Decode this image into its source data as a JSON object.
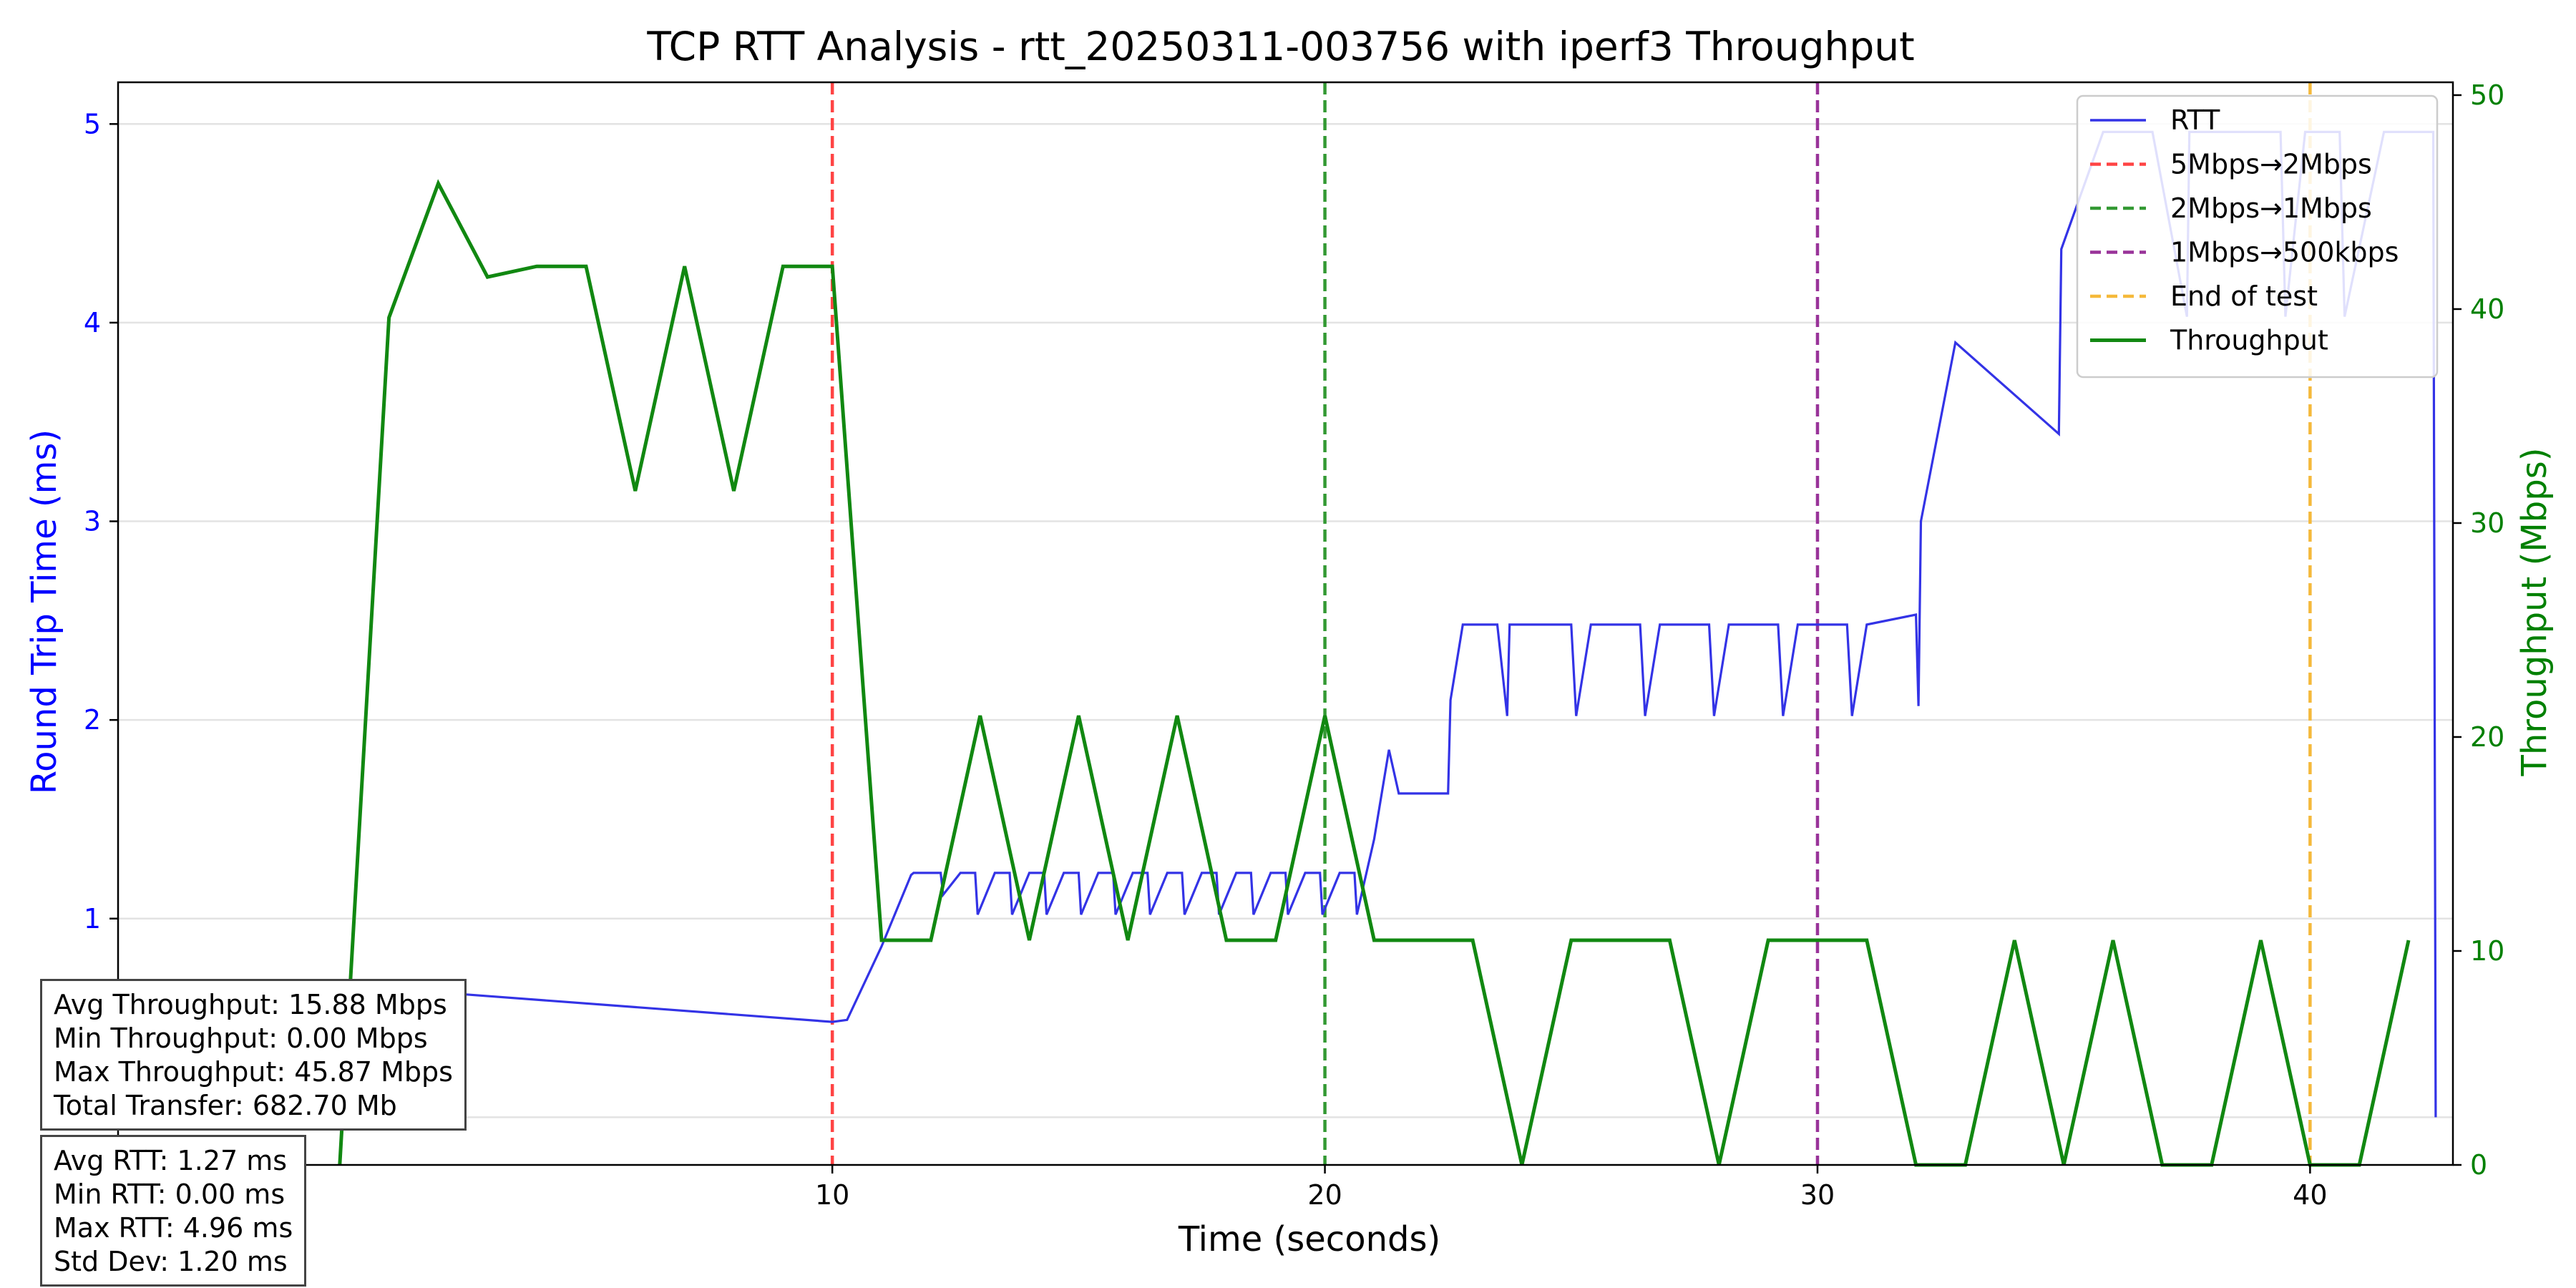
{
  "chart_data": {
    "type": "line",
    "title": "TCP RTT Analysis - rtt_20250311-003756 with iperf3 Throughput",
    "xlabel": "Time (seconds)",
    "ylabel_left": "Round Trip Time (ms)",
    "ylabel_right": "Throughput (Mbps)",
    "xlim": [
      -4.5,
      42.9
    ],
    "ylim_left": [
      -0.24,
      5.21
    ],
    "ylim_right": [
      0,
      50.6
    ],
    "x_ticks": [
      10,
      20,
      30,
      40
    ],
    "x_tick_labels": [
      "10",
      "20",
      "30",
      "40"
    ],
    "y_left_ticks": [
      0,
      1,
      2,
      3,
      4,
      5
    ],
    "y_left_tick_labels": [
      "0",
      "1",
      "2",
      "3",
      "4",
      "5"
    ],
    "y_right_ticks": [
      0,
      10,
      20,
      30,
      40,
      50
    ],
    "y_right_tick_labels": [
      "0",
      "10",
      "20",
      "30",
      "40",
      "50"
    ],
    "grid": true,
    "legend_position": "top-right",
    "colors": {
      "rtt": "#3333e6",
      "throughput": "#118811",
      "left_axis": "#0000ff",
      "right_axis": "#008000",
      "grid": "#e3e3e3"
    },
    "vlines": [
      {
        "x": 10,
        "name": "5Mbps→2Mbps",
        "color": "#ff4444"
      },
      {
        "x": 20,
        "name": "2Mbps→1Mbps",
        "color": "#339933"
      },
      {
        "x": 30,
        "name": "1Mbps→500kbps",
        "color": "#993399"
      },
      {
        "x": 40,
        "name": "End of test",
        "color": "#f5b93b"
      }
    ],
    "series": [
      {
        "name": "RTT",
        "axis": "left",
        "x": [
          0,
          0.01,
          0.3,
          10,
          10.3,
          11,
          11.6,
          11.65,
          12.2,
          12.25,
          12.6,
          12.9,
          12.95,
          13.3,
          13.6,
          13.65,
          14.0,
          14.3,
          14.35,
          14.7,
          15.0,
          15.05,
          15.4,
          15.7,
          15.75,
          16.1,
          16.4,
          16.45,
          16.8,
          17.1,
          17.15,
          17.5,
          17.8,
          17.85,
          18.2,
          18.5,
          18.55,
          18.9,
          19.2,
          19.25,
          19.6,
          19.9,
          19.95,
          20.3,
          20.6,
          20.65,
          21.0,
          21.3,
          21.5,
          22.5,
          22.55,
          22.8,
          23.5,
          23.7,
          23.75,
          24.0,
          25.0,
          25.1,
          25.4,
          26.4,
          26.5,
          26.8,
          27.8,
          27.9,
          28.2,
          29.2,
          29.3,
          29.6,
          30.6,
          30.7,
          31.0,
          32.0,
          32.05,
          32.1,
          32.8,
          34.9,
          34.95,
          35.8,
          36.8,
          37.5,
          37.55,
          38.2,
          38.8,
          39.4,
          39.5,
          39.9,
          40.6,
          40.7,
          41.5,
          42.5,
          42.55
        ],
        "y": [
          0,
          0.62,
          0.66,
          0.48,
          0.49,
          0.86,
          1.22,
          1.23,
          1.23,
          1.12,
          1.23,
          1.23,
          1.02,
          1.23,
          1.23,
          1.02,
          1.23,
          1.23,
          1.02,
          1.23,
          1.23,
          1.02,
          1.23,
          1.23,
          1.02,
          1.23,
          1.23,
          1.02,
          1.23,
          1.23,
          1.02,
          1.23,
          1.23,
          1.02,
          1.23,
          1.23,
          1.02,
          1.23,
          1.23,
          1.02,
          1.23,
          1.23,
          1.02,
          1.23,
          1.23,
          1.02,
          1.4,
          1.85,
          1.63,
          1.63,
          2.1,
          2.48,
          2.48,
          2.02,
          2.48,
          2.48,
          2.48,
          2.02,
          2.48,
          2.48,
          2.02,
          2.48,
          2.48,
          2.02,
          2.48,
          2.48,
          2.02,
          2.48,
          2.48,
          2.02,
          2.48,
          2.53,
          2.07,
          3.0,
          3.9,
          3.44,
          4.37,
          4.96,
          4.96,
          4.03,
          4.96,
          4.96,
          4.96,
          4.96,
          4.03,
          4.96,
          4.96,
          4.03,
          4.96,
          4.96,
          0
        ]
      },
      {
        "name": "Throughput",
        "axis": "right",
        "x": [
          0,
          1,
          2,
          3,
          4,
          5,
          6,
          7,
          8,
          9,
          10,
          11,
          12,
          13,
          14,
          15,
          16,
          17,
          18,
          19,
          20,
          21,
          22,
          23,
          24,
          25,
          26,
          27,
          28,
          29,
          30,
          31,
          32,
          33,
          34,
          35,
          36,
          37,
          38,
          39,
          40,
          41,
          42
        ],
        "y": [
          0,
          39.6,
          45.87,
          41.5,
          42.0,
          42.0,
          31.5,
          42.0,
          31.5,
          42.0,
          42.0,
          10.5,
          10.5,
          21.0,
          10.5,
          21.0,
          10.5,
          21.0,
          10.5,
          10.5,
          21.0,
          10.5,
          10.5,
          10.5,
          0,
          10.5,
          10.5,
          10.5,
          0,
          10.5,
          10.5,
          10.5,
          0,
          0,
          10.5,
          0,
          10.5,
          0,
          0,
          10.5,
          0,
          0,
          10.5
        ]
      }
    ],
    "stats": {
      "throughput": [
        "Avg Throughput: 15.88 Mbps",
        "Min Throughput: 0.00 Mbps",
        "Max Throughput: 45.87 Mbps",
        "Total Transfer: 682.70 Mb"
      ],
      "rtt": [
        "Avg RTT: 1.27 ms",
        "Min RTT: 0.00 ms",
        "Max RTT: 4.96 ms",
        "Std Dev: 1.20 ms"
      ]
    }
  }
}
